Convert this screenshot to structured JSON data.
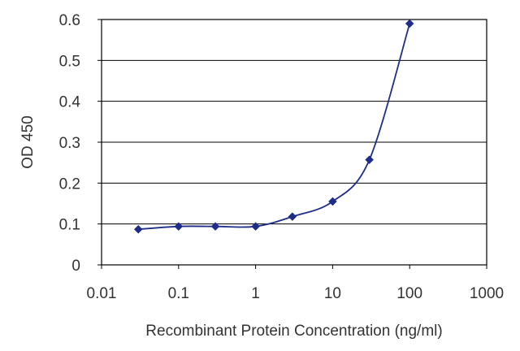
{
  "chart_data": {
    "type": "line",
    "title": "",
    "xlabel": "Recombinant Protein Concentration (ng/ml)",
    "ylabel": "OD 450",
    "x_scale": "log",
    "xlim": [
      0.01,
      1000
    ],
    "ylim": [
      0,
      0.6
    ],
    "x_ticks": [
      "0.01",
      "0.1",
      "1",
      "10",
      "100",
      "1000"
    ],
    "y_ticks": [
      "0",
      "0.1",
      "0.2",
      "0.3",
      "0.4",
      "0.5",
      "0.6"
    ],
    "grid": "horizontal",
    "legend": "none",
    "series": [
      {
        "x": [
          0.03,
          0.1,
          0.3,
          1,
          3,
          10,
          30,
          100
        ],
        "y": [
          0.087,
          0.094,
          0.094,
          0.094,
          0.118,
          0.155,
          0.257,
          0.59
        ],
        "color": "#1f2d8a",
        "marker": "diamond",
        "smooth": true
      }
    ]
  }
}
